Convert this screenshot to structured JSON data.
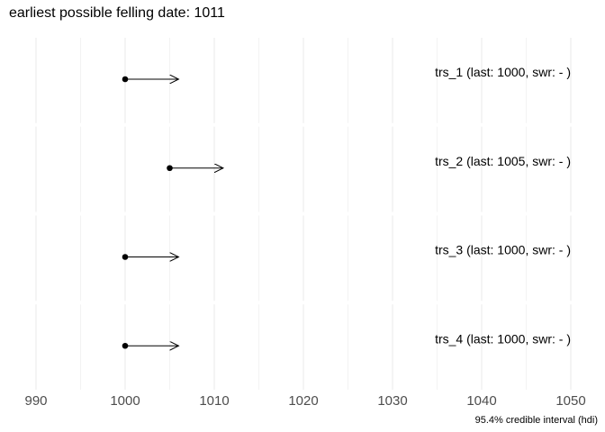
{
  "chart_data": {
    "type": "scatter",
    "title": "earliest possible felling date: 1011",
    "xlabel": "95.4% credible interval (hdi)",
    "xlim": [
      990,
      1050
    ],
    "x_ticks": [
      990,
      1000,
      1010,
      1020,
      1030,
      1040,
      1050
    ],
    "x_tick_labels": [
      "990",
      "1000",
      "1010",
      "1020",
      "1030",
      "1040",
      "1050"
    ],
    "grid": true,
    "series": [
      {
        "label": "trs_1 (last: 1000, swr: - )",
        "point": 1000,
        "arrow_to": 1006
      },
      {
        "label": "trs_2 (last: 1005, swr: - )",
        "point": 1005,
        "arrow_to": 1011
      },
      {
        "label": "trs_3 (last: 1000, swr: - )",
        "point": 1000,
        "arrow_to": 1006
      },
      {
        "label": "trs_4 (last: 1000, swr: - )",
        "point": 1000,
        "arrow_to": 1006
      }
    ],
    "colors": {
      "grid": "#ebebeb",
      "tick_text": "#4d4d4d",
      "mark": "#000000"
    }
  }
}
